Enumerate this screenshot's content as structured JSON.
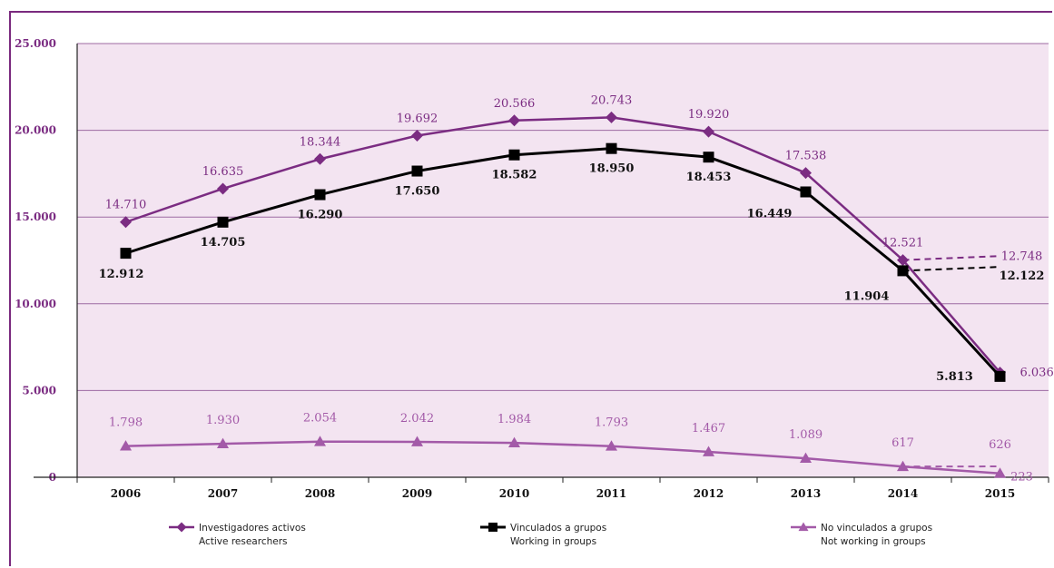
{
  "chart_data": {
    "type": "line",
    "categories": [
      "2006",
      "2007",
      "2008",
      "2009",
      "2010",
      "2011",
      "2012",
      "2013",
      "2014",
      "2015"
    ],
    "ylim": [
      0,
      25000
    ],
    "yticks": [
      0,
      5000,
      10000,
      15000,
      20000,
      25000
    ],
    "ytick_labels": [
      "0",
      "5.000",
      "10.000",
      "15.000",
      "20.000",
      "25.000"
    ],
    "grid": true,
    "legend_position": "bottom",
    "series": [
      {
        "name": "Investigadores activos",
        "name_en": "Active researchers",
        "color": "#7b2c82",
        "marker": "diamond",
        "values": [
          14710,
          16635,
          18344,
          19692,
          20566,
          20743,
          19920,
          17538,
          12521,
          6036
        ],
        "labels": [
          "14.710",
          "16.635",
          "18.344",
          "19.692",
          "20.566",
          "20.743",
          "19.920",
          "17.538",
          "12.521",
          "6.036"
        ],
        "projection": {
          "from": "2014",
          "value": 12748,
          "label": "12.748"
        }
      },
      {
        "name": "Vinculados a grupos",
        "name_en": "Working in groups",
        "color": "#000000",
        "marker": "square",
        "values": [
          12912,
          14705,
          16290,
          17650,
          18582,
          18950,
          18453,
          16449,
          11904,
          5813
        ],
        "labels": [
          "12.912",
          "14.705",
          "16.290",
          "17.650",
          "18.582",
          "18.950",
          "18.453",
          "16.449",
          "11.904",
          "5.813"
        ],
        "projection": {
          "from": "2014",
          "value": 12122,
          "label": "12.122"
        }
      },
      {
        "name": "No vinculados a grupos",
        "name_en": "Not working in groups",
        "color": "#a35aa8",
        "marker": "triangle",
        "values": [
          1798,
          1930,
          2054,
          2042,
          1984,
          1793,
          1467,
          1089,
          617,
          223
        ],
        "labels": [
          "1.798",
          "1.930",
          "2.054",
          "2.042",
          "1.984",
          "1.793",
          "1.467",
          "1.089",
          "617",
          "223"
        ],
        "projection": {
          "from": "2014",
          "value": 626,
          "label": "626"
        }
      }
    ]
  }
}
